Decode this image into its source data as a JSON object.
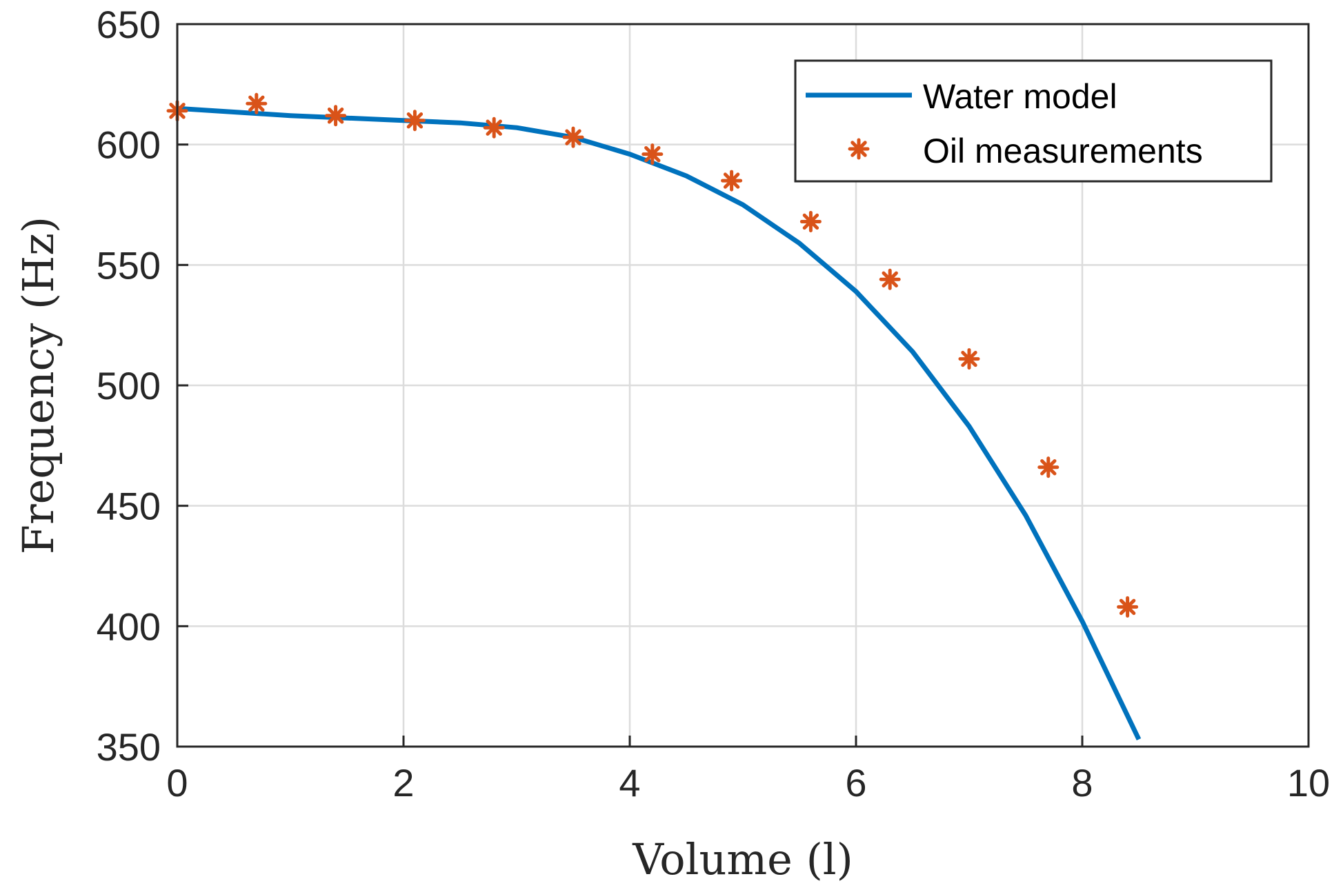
{
  "chart_data": {
    "type": "line",
    "title": "",
    "xlabel": "Volume (l)",
    "ylabel": "Frequency (Hz)",
    "xlim": [
      0,
      10
    ],
    "ylim": [
      350,
      650
    ],
    "xticks": [
      0,
      2,
      4,
      6,
      8,
      10
    ],
    "yticks": [
      350,
      400,
      450,
      500,
      550,
      600,
      650
    ],
    "grid": true,
    "legend_position": "top-right",
    "series": [
      {
        "name": "Water model",
        "kind": "line",
        "color": "#0072BD",
        "x": [
          0,
          0.5,
          1,
          1.5,
          2,
          2.5,
          3,
          3.5,
          4,
          4.5,
          5,
          5.5,
          6,
          6.5,
          7,
          7.5,
          8,
          8.5
        ],
        "y": [
          615,
          613.5,
          612,
          611,
          610,
          609,
          607,
          603,
          596,
          587,
          575,
          559,
          539,
          514,
          483,
          446,
          402,
          353
        ]
      },
      {
        "name": "Oil measurements",
        "kind": "scatter",
        "marker": "asterisk",
        "color": "#D95319",
        "x": [
          0,
          0.7,
          1.4,
          2.1,
          2.8,
          3.5,
          4.2,
          4.9,
          5.6,
          6.3,
          7.0,
          7.7,
          8.4
        ],
        "y": [
          614,
          617,
          612,
          610,
          607,
          603,
          596,
          585,
          568,
          544,
          511,
          466,
          408
        ]
      }
    ]
  }
}
